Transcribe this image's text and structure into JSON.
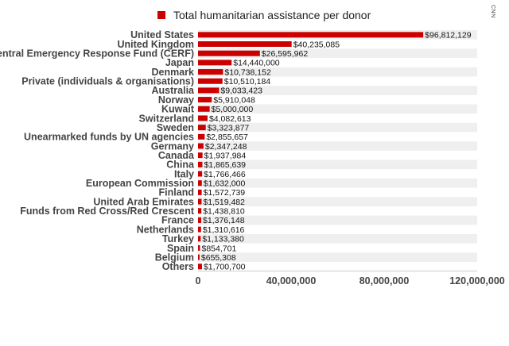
{
  "source": "CNN",
  "chart_data": {
    "type": "bar",
    "orientation": "horizontal",
    "legend": {
      "label": "Total humanitarian assistance per donor",
      "placement": "top-center"
    },
    "categories": [
      "United States",
      "United Kingdom",
      "Central Emergency Response Fund (CERF)",
      "Japan",
      "Denmark",
      "Private (individuals & organisations)",
      "Australia",
      "Norway",
      "Kuwait",
      "Switzerland",
      "Sweden",
      "Unearmarked funds by UN agencies",
      "Germany",
      "Canada",
      "China",
      "Italy",
      "European Commission",
      "Finland",
      "United Arab Emirates",
      "Funds from Red Cross/Red Crescent",
      "France",
      "Netherlands",
      "Turkey",
      "Spain",
      "Belgium",
      "Others"
    ],
    "values": [
      96812129,
      40235085,
      26595962,
      14440000,
      10738152,
      10510184,
      9033423,
      5910048,
      5000000,
      4082613,
      3323877,
      2855657,
      2347248,
      1937984,
      1865639,
      1766466,
      1632000,
      1572739,
      1519482,
      1438810,
      1376148,
      1310616,
      1133380,
      854701,
      655308,
      1700700
    ],
    "value_labels": [
      "$96,812,129",
      "$40,235,085",
      "$26,595,962",
      "$14,440,000",
      "$10,738,152",
      "$10,510,184",
      "$9,033,423",
      "$5,910,048",
      "$5,000,000",
      "$4,082,613",
      "$3,323,877",
      "$2,855,657",
      "$2,347,248",
      "$1,937,984",
      "$1,865,639",
      "$1,766,466",
      "$1,632,000",
      "$1,572,739",
      "$1,519,482",
      "$1,438,810",
      "$1,376,148",
      "$1,310,616",
      "$1,133,380",
      "$854,701",
      "$655,308",
      "$1,700,700"
    ],
    "xlim": [
      0,
      120000000
    ],
    "xticks": [
      0,
      40000000,
      80000000,
      120000000
    ],
    "xtick_labels": [
      "0",
      "40,000,000",
      "80,000,000",
      "120,000,000"
    ],
    "bar_color": "#cc0000",
    "band_color": "#efefef",
    "grid": false
  }
}
